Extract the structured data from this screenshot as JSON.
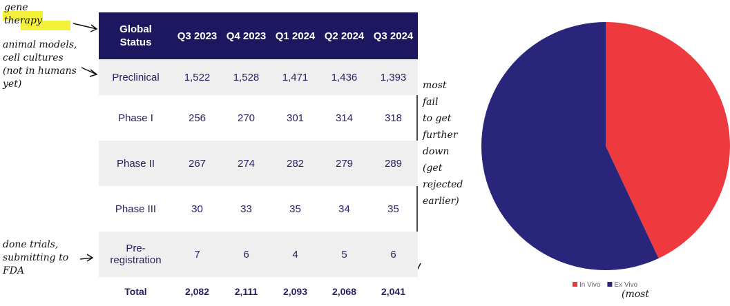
{
  "table": {
    "header": [
      "Global Status",
      "Q3 2023",
      "Q4 2023",
      "Q1 2024",
      "Q2 2024",
      "Q3 2024"
    ],
    "rows": [
      [
        "Preclinical",
        "1,522",
        "1,528",
        "1,471",
        "1,436",
        "1,393"
      ],
      [
        "Phase I",
        "256",
        "270",
        "301",
        "314",
        "318"
      ],
      [
        "Phase II",
        "267",
        "274",
        "282",
        "279",
        "289"
      ],
      [
        "Phase III",
        "30",
        "33",
        "35",
        "34",
        "35"
      ],
      [
        "Pre-registration",
        "7",
        "6",
        "4",
        "5",
        "6"
      ],
      [
        "Total",
        "2,082",
        "2,111",
        "2,093",
        "2,068",
        "2,041"
      ]
    ]
  },
  "annotations": [
    {
      "lines": [
        "gene",
        "therapy"
      ]
    },
    {
      "lines": [
        "animal models,",
        "cell cultures",
        "(not in humans",
        "yet)"
      ]
    },
    {
      "lines": [
        "most",
        "fail",
        "to get",
        "further",
        "down",
        "(get",
        "rejected",
        "earlier)"
      ]
    },
    {
      "lines": [
        "done trials,",
        "submitting to",
        "FDA"
      ]
    },
    {
      "lines": [
        "(most"
      ]
    }
  ],
  "chart_data": {
    "type": "pie",
    "categories": [
      "In Vivo",
      "Ex Vivo"
    ],
    "values": [
      43,
      57
    ],
    "colors": [
      "#ee3a3f",
      "#28257a"
    ],
    "legend": "bottom"
  }
}
